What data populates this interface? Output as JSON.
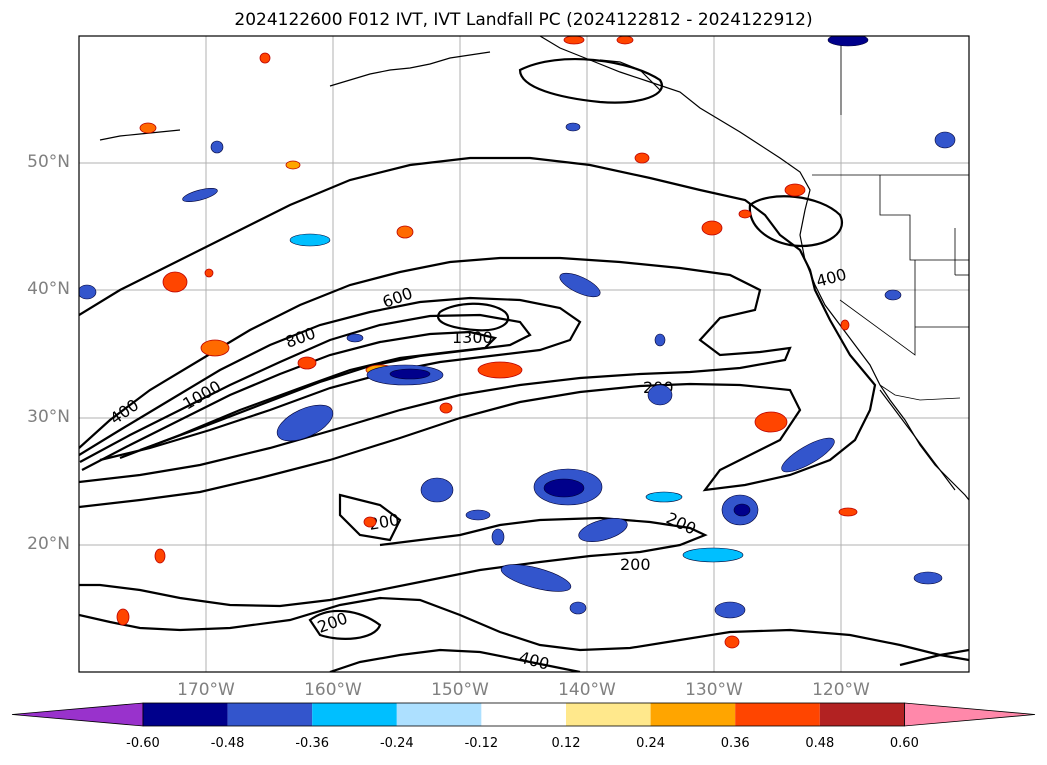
{
  "title": "2024122600 F012 IVT, IVT Landfall PC (2024122812 - 2024122912)",
  "lat_labels": [
    "50°N",
    "40°N",
    "30°N",
    "20°N"
  ],
  "lon_labels": [
    "170°W",
    "160°W",
    "150°W",
    "140°W",
    "130°W",
    "120°W"
  ],
  "contour_labels": [
    "400",
    "1000",
    "800",
    "600",
    "1300",
    "200",
    "400",
    "200",
    "200",
    "200",
    "200",
    "400"
  ],
  "colorbar": {
    "tick_labels": [
      "-0.60",
      "-0.48",
      "-0.36",
      "-0.24",
      "-0.12",
      "0.12",
      "0.24",
      "0.36",
      "0.48",
      "0.60"
    ],
    "colors": [
      "#9932CC",
      "#00008B",
      "#3355CC",
      "#00BFFF",
      "#ADE0FF",
      "#FFFFFF",
      "#FFE88C",
      "#FFA500",
      "#FF4500",
      "#B22222",
      "#FF88AA"
    ]
  }
}
